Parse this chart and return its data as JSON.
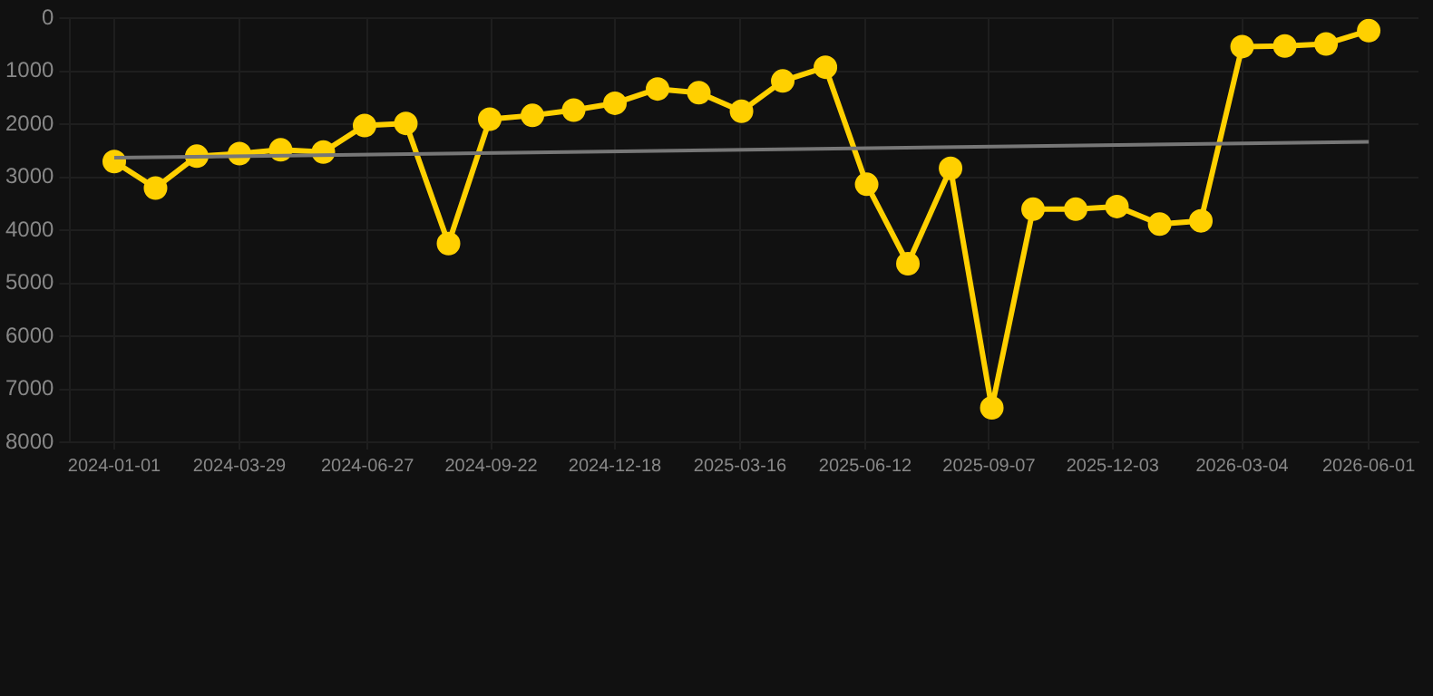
{
  "chart_data": {
    "type": "line",
    "x": [
      "2024-01-01",
      "2024-01-30",
      "2024-02-28",
      "2024-03-29",
      "2024-04-27",
      "2024-05-27",
      "2024-06-25",
      "2024-07-24",
      "2024-08-23",
      "2024-09-21",
      "2024-10-21",
      "2024-11-19",
      "2024-12-18",
      "2025-01-17",
      "2025-02-15",
      "2025-03-17",
      "2025-04-15",
      "2025-05-15",
      "2025-06-13",
      "2025-07-12",
      "2025-08-11",
      "2025-09-09",
      "2025-10-08",
      "2025-11-07",
      "2025-12-06",
      "2026-01-05",
      "2026-02-03",
      "2026-03-04",
      "2026-04-03",
      "2026-05-02",
      "2026-06-01"
    ],
    "series": [
      {
        "color": "#ffd000",
        "values": [
          2700,
          3200,
          2600,
          2550,
          2480,
          2520,
          2020,
          1980,
          4250,
          1900,
          1830,
          1730,
          1600,
          1330,
          1400,
          1750,
          1180,
          920,
          3130,
          4630,
          2830,
          7350,
          3600,
          3600,
          3550,
          3880,
          3820,
          530,
          520,
          480,
          230
        ]
      },
      {
        "type": "line",
        "color": "#777777",
        "marker": "none",
        "x": [
          "2024-01-01",
          "2026-06-01"
        ],
        "values": [
          2630,
          2330
        ]
      }
    ],
    "marker": "circle",
    "line_style": "solid",
    "xlim": [
      "2023-12-01",
      "2026-07-06"
    ],
    "xticks": [
      "2024-01-01",
      "2024-03-29",
      "2024-06-27",
      "2024-09-22",
      "2024-12-18",
      "2025-03-16",
      "2025-06-12",
      "2025-09-07",
      "2025-12-03",
      "2026-03-04",
      "2026-06-01"
    ],
    "ylim": [
      8000,
      0
    ],
    "yticks": [
      0,
      1000,
      2000,
      3000,
      4000,
      5000,
      6000,
      7000,
      8000
    ],
    "grid": true,
    "legend": false
  }
}
